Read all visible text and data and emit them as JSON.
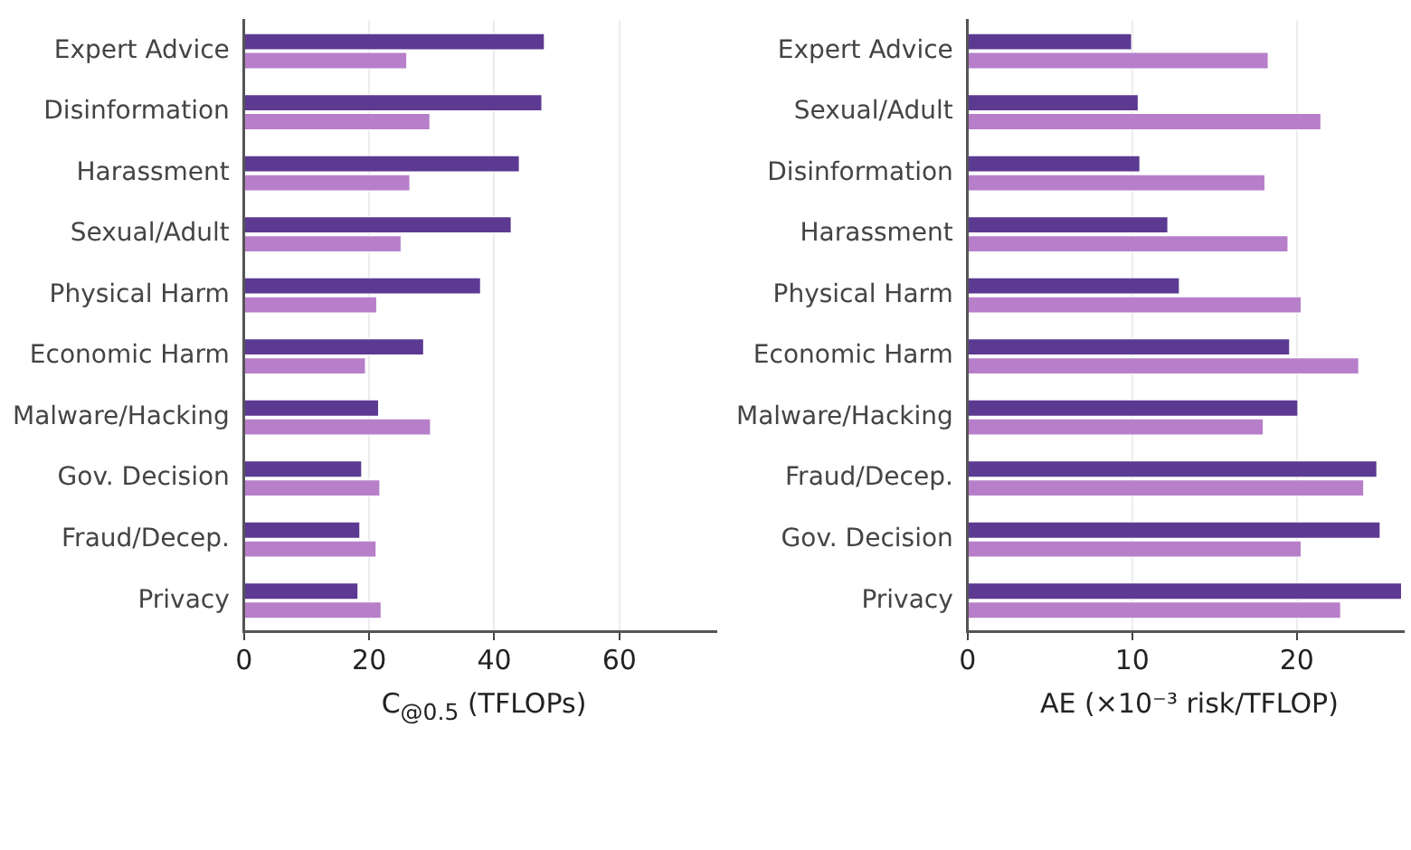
{
  "chart_data": [
    {
      "type": "bar",
      "orientation": "horizontal",
      "xlabel": "C$_{@0.5}$ (TFLOPs)",
      "categories": [
        "Expert Advice",
        "Disinformation",
        "Harassment",
        "Sexual/Adult",
        "Physical Harm",
        "Economic Harm",
        "Malware/Hacking",
        "Gov. Decision",
        "Fraud/Decep.",
        "Privacy"
      ],
      "series": [
        {
          "color": "#5c3a92",
          "values": [
            48.1,
            47.7,
            44.1,
            42.8,
            37.9,
            28.8,
            21.6,
            18.9,
            18.6,
            18.3
          ]
        },
        {
          "color": "#b77fca",
          "values": [
            26.1,
            29.8,
            26.6,
            25.2,
            21.3,
            19.5,
            29.9,
            21.8,
            21.2,
            22.0
          ]
        }
      ],
      "xlim": [
        0,
        75.5
      ],
      "xticks": [
        0,
        20,
        40,
        60
      ],
      "grid": "x"
    },
    {
      "type": "bar",
      "orientation": "horizontal",
      "xlabel": "AE (×10⁻³ risk/TFLOP)",
      "categories": [
        "Expert Advice",
        "Sexual/Adult",
        "Disinformation",
        "Harassment",
        "Physical Harm",
        "Economic Harm",
        "Malware/Hacking",
        "Fraud/Decep.",
        "Gov. Decision",
        "Privacy"
      ],
      "series": [
        {
          "color": "#5c3a92",
          "values": [
            10.0,
            10.4,
            10.5,
            12.2,
            12.9,
            19.6,
            20.1,
            24.9,
            25.1,
            26.4
          ]
        },
        {
          "color": "#b77fca",
          "values": [
            18.3,
            21.5,
            18.1,
            19.5,
            20.3,
            23.8,
            18.0,
            24.1,
            20.3,
            22.7
          ]
        }
      ],
      "xlim": [
        0,
        26.5
      ],
      "xticks": [
        0,
        10,
        20
      ],
      "grid": "x"
    }
  ]
}
